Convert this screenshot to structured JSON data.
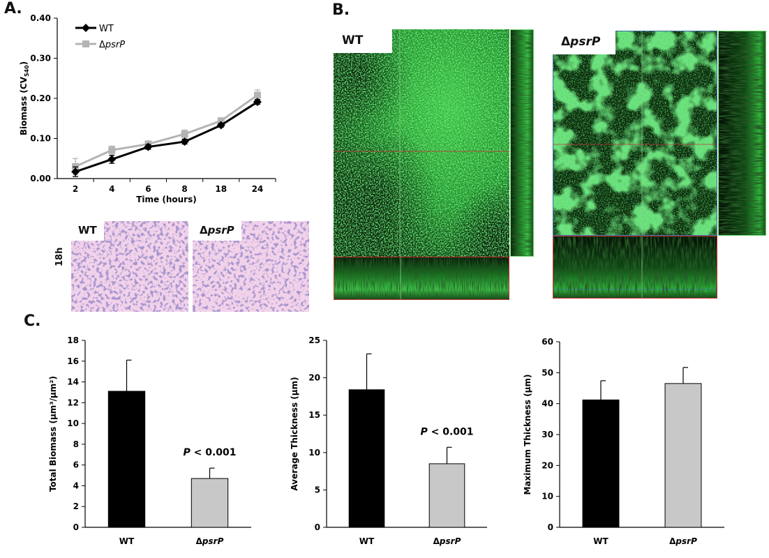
{
  "panels": {
    "A": "A.",
    "B": "B.",
    "C": "C."
  },
  "chart_data": [
    {
      "type": "line",
      "xlabel": "Time (hours)",
      "ylabel": "Biomass (CV540)",
      "ylabel_main": "Biomass (CV",
      "ylabel_sub": "540",
      "ylabel_close": ")",
      "categories": [
        "2",
        "4",
        "6",
        "8",
        "18",
        "24"
      ],
      "ylim": [
        0,
        0.4
      ],
      "yticks": [
        "0.00",
        "0.10",
        "0.20",
        "0.30",
        "0.40"
      ],
      "legend_position": "top-left",
      "series": [
        {
          "name": "WT",
          "color": "#000000",
          "marker": "diamond",
          "values": [
            0.017,
            0.048,
            0.079,
            0.092,
            0.133,
            0.191
          ],
          "errors": [
            0.012,
            0.01,
            0.006,
            0.006,
            0.005,
            0.006
          ]
        },
        {
          "name": "ΔpsrP",
          "name_prefix": "Δ",
          "name_italic": "psrP",
          "color": "#b4b4b4",
          "marker": "square",
          "values": [
            0.03,
            0.071,
            0.086,
            0.111,
            0.144,
            0.208
          ],
          "errors": [
            0.02,
            0.01,
            0.008,
            0.01,
            0.007,
            0.013
          ]
        }
      ]
    },
    {
      "type": "bar",
      "ylabel": "Total Biomass (µm³/µm²)",
      "categories": [
        "WT",
        "ΔpsrP"
      ],
      "values": [
        13.1,
        4.7
      ],
      "errors": [
        3.0,
        1.0
      ],
      "ylim": [
        0,
        18
      ],
      "yticks": [
        "0",
        "2",
        "4",
        "6",
        "8",
        "10",
        "12",
        "14",
        "16",
        "18"
      ],
      "colors": [
        "#000000",
        "#c8c8c8"
      ],
      "annotation": "P < 0.001"
    },
    {
      "type": "bar",
      "ylabel": "Average Thickness (µm)",
      "categories": [
        "WT",
        "ΔpsrP"
      ],
      "values": [
        18.4,
        8.5
      ],
      "errors": [
        4.8,
        2.2
      ],
      "ylim": [
        0,
        25
      ],
      "yticks": [
        "0",
        "5",
        "10",
        "15",
        "20",
        "25"
      ],
      "colors": [
        "#000000",
        "#c8c8c8"
      ],
      "annotation": "P < 0.001"
    },
    {
      "type": "bar",
      "ylabel": "Maximum Thickness (µm)",
      "categories": [
        "WT",
        "ΔpsrP"
      ],
      "values": [
        41.2,
        46.5
      ],
      "errors": [
        6.2,
        5.2
      ],
      "ylim": [
        0,
        60
      ],
      "yticks": [
        "0",
        "10",
        "20",
        "30",
        "40",
        "50",
        "60"
      ],
      "colors": [
        "#000000",
        "#c8c8c8"
      ]
    }
  ],
  "stain_images": {
    "row_label": "18h",
    "left": {
      "prefix": "",
      "italic": "",
      "plain": "WT"
    },
    "right": {
      "prefix": "Δ",
      "italic": "psrP",
      "plain": ""
    }
  },
  "confocal": {
    "left": {
      "prefix": "",
      "italic": "",
      "plain": "WT"
    },
    "right": {
      "prefix": "Δ",
      "italic": "psrP",
      "plain": ""
    },
    "colors": {
      "green": "#2fb43a",
      "red_line": "#c83030",
      "frame_green": "#6fd86f",
      "frame_blue": "#3a6aa0"
    }
  }
}
